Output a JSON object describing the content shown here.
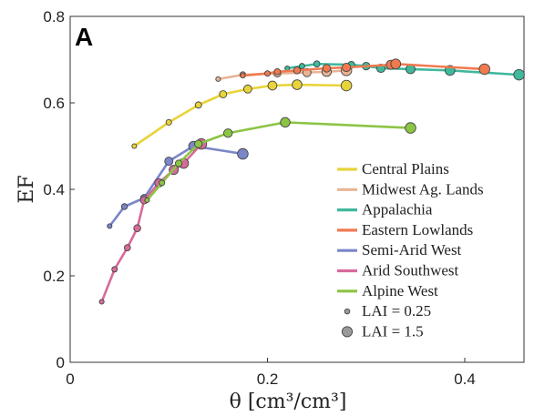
{
  "panel_label": "A",
  "chart_data": {
    "type": "line",
    "xlabel": "θ [cm³/cm³]",
    "ylabel": "EF",
    "xlim": [
      0,
      0.46
    ],
    "ylim": [
      0,
      0.8
    ],
    "xticks": [
      "0",
      "0.2",
      "0.4"
    ],
    "xtick_values": [
      0,
      0.2,
      0.4
    ],
    "yticks": [
      "0",
      "0.2",
      "0.4",
      "0.6",
      "0.8"
    ],
    "ytick_values": [
      0,
      0.2,
      0.4,
      0.6,
      0.8
    ],
    "legend_position": "lower-right",
    "size_legend": [
      "LAI = 0.25",
      "LAI = 1.5"
    ],
    "series": [
      {
        "name": "Central Plains",
        "color": "#e8d43a",
        "x": [
          0.065,
          0.1,
          0.13,
          0.155,
          0.18,
          0.205,
          0.23,
          0.28
        ],
        "y": [
          0.5,
          0.555,
          0.595,
          0.62,
          0.632,
          0.64,
          0.642,
          0.64
        ]
      },
      {
        "name": "Midwest Ag. Lands",
        "color": "#e8b496",
        "x": [
          0.15,
          0.175,
          0.21,
          0.24,
          0.26,
          0.28
        ],
        "y": [
          0.655,
          0.665,
          0.668,
          0.67,
          0.672,
          0.675
        ]
      },
      {
        "name": "Appalachia",
        "color": "#3fb89c",
        "x": [
          0.22,
          0.235,
          0.25,
          0.285,
          0.3,
          0.315,
          0.345,
          0.385,
          0.455
        ],
        "y": [
          0.68,
          0.685,
          0.69,
          0.688,
          0.685,
          0.68,
          0.678,
          0.675,
          0.665
        ]
      },
      {
        "name": "Eastern Lowlands",
        "color": "#f07a50",
        "x": [
          0.175,
          0.2,
          0.21,
          0.23,
          0.26,
          0.28,
          0.325,
          0.33,
          0.42
        ],
        "y": [
          0.663,
          0.668,
          0.672,
          0.675,
          0.68,
          0.682,
          0.688,
          0.69,
          0.678
        ]
      },
      {
        "name": "Semi-Arid West",
        "color": "#7a86c8",
        "x": [
          0.04,
          0.055,
          0.075,
          0.1,
          0.125,
          0.175
        ],
        "y": [
          0.315,
          0.36,
          0.38,
          0.465,
          0.5,
          0.482
        ]
      },
      {
        "name": "Arid Southwest",
        "color": "#d86a9a",
        "x": [
          0.032,
          0.045,
          0.058,
          0.068,
          0.075,
          0.09,
          0.105,
          0.115,
          0.133
        ],
        "y": [
          0.14,
          0.215,
          0.265,
          0.31,
          0.375,
          0.415,
          0.445,
          0.46,
          0.505
        ]
      },
      {
        "name": "Alpine West",
        "color": "#8cc444",
        "x": [
          0.078,
          0.093,
          0.11,
          0.13,
          0.16,
          0.218,
          0.345
        ],
        "y": [
          0.375,
          0.415,
          0.46,
          0.505,
          0.53,
          0.555,
          0.542
        ]
      }
    ]
  }
}
